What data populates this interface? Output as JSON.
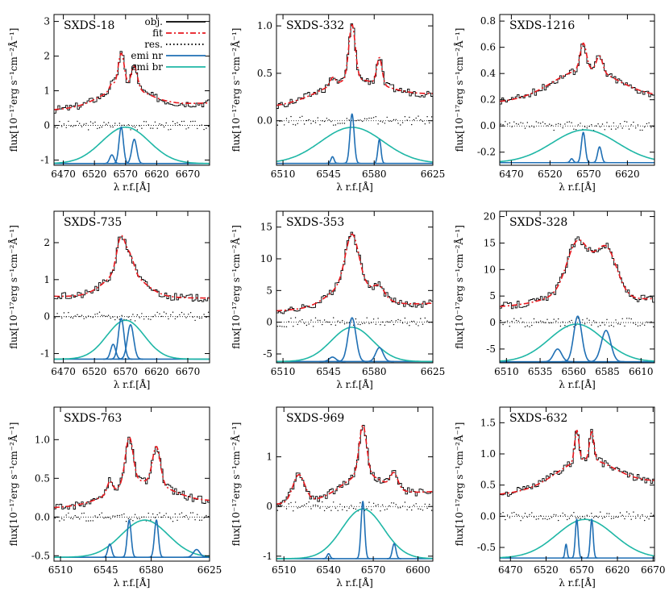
{
  "figure": {
    "ylabel": "flux[10⁻¹⁷erg s⁻¹cm⁻²Å⁻¹]",
    "xlabel": "λ r.f.[Å]"
  },
  "legend": {
    "items": [
      {
        "label": "obj.",
        "style": "solid",
        "color": "#000000"
      },
      {
        "label": "fit",
        "style": "dashdot",
        "color": "#e8181e"
      },
      {
        "label": "res.",
        "style": "dotted",
        "color": "#000000"
      },
      {
        "label": "emi nr",
        "style": "solid",
        "color": "#1f6fb4"
      },
      {
        "label": "emi br",
        "style": "solid",
        "color": "#1fb7a6"
      }
    ]
  },
  "colors": {
    "obj": "#000000",
    "fit": "#e8181e",
    "res": "#000000",
    "nr": "#1f6fb4",
    "br": "#1fb7a6"
  },
  "chart_data": [
    {
      "type": "line",
      "title": "SXDS-18",
      "xlim": [
        6455,
        6705
      ],
      "ylim": [
        -1.15,
        3.2
      ],
      "xticks": [
        6470,
        6520,
        6570,
        6620,
        6670
      ],
      "yticks": [
        -1,
        0,
        1,
        2,
        3
      ],
      "baseline": -1.1,
      "res_level": 0.0,
      "continuum": [
        0.45,
        0.65
      ],
      "broad": {
        "center": 6570,
        "sigma": 38,
        "peak": -0.05
      },
      "narrow": [
        {
          "center": 6548,
          "sigma": 3.5,
          "peak": -0.85
        },
        {
          "center": 6563,
          "sigma": 3.5,
          "peak": -0.05
        },
        {
          "center": 6584,
          "sigma": 4,
          "peak": -0.4
        }
      ],
      "peaks": [
        {
          "center": 6563,
          "sigma": 5,
          "amp": 1.0
        },
        {
          "center": 6584,
          "sigma": 5,
          "amp": 0.65
        },
        {
          "center": 6548,
          "sigma": 4,
          "amp": 0.2
        }
      ],
      "broad_amp": 0.55,
      "broad_sigma": 38,
      "broad_center": 6568
    },
    {
      "type": "line",
      "title": "SXDS-332",
      "xlim": [
        6505,
        6625
      ],
      "ylim": [
        -0.47,
        1.12
      ],
      "xticks": [
        6510,
        6545,
        6580,
        6625
      ],
      "yticks": [
        0.0,
        0.5,
        1.0
      ],
      "baseline": -0.45,
      "res_level": 0.0,
      "continuum": [
        0.15,
        0.28
      ],
      "broad": {
        "center": 6563,
        "sigma": 24,
        "peak": -0.07
      },
      "narrow": [
        {
          "center": 6548,
          "sigma": 1.2,
          "peak": -0.38
        },
        {
          "center": 6563,
          "sigma": 1.6,
          "peak": 0.07
        },
        {
          "center": 6584,
          "sigma": 1.2,
          "peak": -0.2
        }
      ],
      "peaks": [
        {
          "center": 6563,
          "sigma": 2.5,
          "amp": 0.58
        },
        {
          "center": 6584,
          "sigma": 2,
          "amp": 0.28
        },
        {
          "center": 6548,
          "sigma": 2,
          "amp": 0.08
        }
      ],
      "broad_amp": 0.22,
      "broad_sigma": 24,
      "broad_center": 6563
    },
    {
      "type": "line",
      "title": "SXDS-1216",
      "xlim": [
        6455,
        6655
      ],
      "ylim": [
        -0.3,
        0.85
      ],
      "xticks": [
        6470,
        6520,
        6570,
        6620
      ],
      "yticks": [
        -0.2,
        0.0,
        0.2,
        0.4,
        0.6,
        0.8
      ],
      "baseline": -0.28,
      "res_level": 0.0,
      "continuum": [
        0.18,
        0.22
      ],
      "broad": {
        "center": 6565,
        "sigma": 42,
        "peak": -0.03
      },
      "narrow": [
        {
          "center": 6548,
          "sigma": 2,
          "peak": -0.25
        },
        {
          "center": 6563,
          "sigma": 2.5,
          "peak": -0.05
        },
        {
          "center": 6584,
          "sigma": 2.5,
          "peak": -0.16
        }
      ],
      "peaks": [
        {
          "center": 6563,
          "sigma": 4,
          "amp": 0.2
        },
        {
          "center": 6584,
          "sigma": 4,
          "amp": 0.12
        }
      ],
      "broad_amp": 0.23,
      "broad_sigma": 42,
      "broad_center": 6565
    },
    {
      "type": "line",
      "title": "SXDS-735",
      "xlim": [
        6455,
        6705
      ],
      "ylim": [
        -1.25,
        2.85
      ],
      "xticks": [
        6470,
        6520,
        6570,
        6620,
        6670
      ],
      "yticks": [
        -1,
        0,
        1,
        2
      ],
      "baseline": -1.15,
      "res_level": 0.0,
      "continuum": [
        0.55,
        0.5
      ],
      "broad": {
        "center": 6570,
        "sigma": 30,
        "peak": -0.1
      },
      "narrow": [
        {
          "center": 6550,
          "sigma": 4,
          "peak": -0.75
        },
        {
          "center": 6563,
          "sigma": 4.5,
          "peak": -0.05
        },
        {
          "center": 6578,
          "sigma": 5,
          "peak": -0.22
        }
      ],
      "peaks": [
        {
          "center": 6563,
          "sigma": 7,
          "amp": 0.95
        },
        {
          "center": 6578,
          "sigma": 6,
          "amp": 0.4
        }
      ],
      "broad_amp": 0.7,
      "broad_sigma": 30,
      "broad_center": 6568
    },
    {
      "type": "line",
      "title": "SXDS-353",
      "xlim": [
        6505,
        6625
      ],
      "ylim": [
        -6.4,
        17.5
      ],
      "xticks": [
        6510,
        6545,
        6580,
        6625
      ],
      "yticks": [
        -5,
        0,
        5,
        10,
        15
      ],
      "baseline": -6.2,
      "res_level": 0.0,
      "continuum": [
        1.8,
        3.0
      ],
      "broad": {
        "center": 6563,
        "sigma": 16,
        "peak": -0.8
      },
      "narrow": [
        {
          "center": 6548,
          "sigma": 2.5,
          "peak": -5.5
        },
        {
          "center": 6563,
          "sigma": 3,
          "peak": 0.7
        },
        {
          "center": 6584,
          "sigma": 2.8,
          "peak": -4.0
        }
      ],
      "peaks": [
        {
          "center": 6563,
          "sigma": 5,
          "amp": 7.5
        },
        {
          "center": 6584,
          "sigma": 4,
          "amp": 1.5
        }
      ],
      "broad_amp": 4.0,
      "broad_sigma": 16,
      "broad_center": 6563
    },
    {
      "type": "line",
      "title": "SXDS-328",
      "xlim": [
        6505,
        6620
      ],
      "ylim": [
        -7.6,
        21
      ],
      "xticks": [
        6510,
        6535,
        6560,
        6585,
        6610
      ],
      "yticks": [
        -5,
        0,
        5,
        10,
        15,
        20
      ],
      "baseline": -7.4,
      "res_level": 0.0,
      "continuum": [
        3.0,
        4.5
      ],
      "broad": {
        "center": 6562,
        "sigma": 20,
        "peak": -0.3
      },
      "narrow": [
        {
          "center": 6548,
          "sigma": 3,
          "peak": -5.0
        },
        {
          "center": 6563,
          "sigma": 3,
          "peak": 1.2
        },
        {
          "center": 6584,
          "sigma": 3.5,
          "peak": -1.5
        }
      ],
      "peaks": [
        {
          "center": 6563,
          "sigma": 8,
          "amp": 9.5
        },
        {
          "center": 6584,
          "sigma": 8,
          "amp": 9.0
        }
      ],
      "broad_amp": 2.0,
      "broad_sigma": 20,
      "broad_center": 6562
    },
    {
      "type": "line",
      "title": "SXDS-763",
      "xlim": [
        6505,
        6625
      ],
      "ylim": [
        -0.57,
        1.42
      ],
      "xticks": [
        6510,
        6545,
        6580,
        6625
      ],
      "yticks": [
        -0.5,
        0.0,
        0.5,
        1.0
      ],
      "baseline": -0.52,
      "res_level": 0.0,
      "continuum": [
        0.12,
        0.2
      ],
      "broad": {
        "center": 6575,
        "sigma": 18,
        "peak": -0.04
      },
      "narrow": [
        {
          "center": 6548,
          "sigma": 1.5,
          "peak": -0.35
        },
        {
          "center": 6563,
          "sigma": 1.5,
          "peak": -0.04
        },
        {
          "center": 6584,
          "sigma": 1.5,
          "peak": -0.04
        },
        {
          "center": 6615,
          "sigma": 2.5,
          "peak": -0.42
        }
      ],
      "peaks": [
        {
          "center": 6563,
          "sigma": 3,
          "amp": 0.6
        },
        {
          "center": 6584,
          "sigma": 3,
          "amp": 0.48
        },
        {
          "center": 6548,
          "sigma": 2,
          "amp": 0.15
        }
      ],
      "broad_amp": 0.3,
      "broad_sigma": 22,
      "broad_center": 6572
    },
    {
      "type": "line",
      "title": "SXDS-969",
      "xlim": [
        6505,
        6610
      ],
      "ylim": [
        -1.1,
        2.0
      ],
      "xticks": [
        6510,
        6540,
        6570,
        6600
      ],
      "yticks": [
        -1,
        0,
        1
      ],
      "baseline": -1.05,
      "res_level": 0.0,
      "continuum": [
        0.05,
        0.3
      ],
      "broad": {
        "center": 6563,
        "sigma": 14,
        "peak": -0.05
      },
      "narrow": [
        {
          "center": 6540,
          "sigma": 1,
          "peak": -0.95
        },
        {
          "center": 6563,
          "sigma": 1.2,
          "peak": 0.1
        },
        {
          "center": 6584,
          "sigma": 1.2,
          "peak": -0.75
        }
      ],
      "peaks": [
        {
          "center": 6563,
          "sigma": 2.5,
          "amp": 1.0
        },
        {
          "center": 6584,
          "sigma": 2.5,
          "amp": 0.3
        },
        {
          "center": 6520,
          "sigma": 4,
          "amp": 0.55
        }
      ],
      "broad_amp": 0.45,
      "broad_sigma": 14,
      "broad_center": 6563
    },
    {
      "type": "line",
      "title": "SXDS-632",
      "xlim": [
        6455,
        6672
      ],
      "ylim": [
        -0.72,
        1.75
      ],
      "xticks": [
        6470,
        6520,
        6570,
        6620,
        6670
      ],
      "yticks": [
        -0.5,
        0.0,
        0.5,
        1.0,
        1.5
      ],
      "baseline": -0.67,
      "res_level": 0.0,
      "continuum": [
        0.35,
        0.55
      ],
      "broad": {
        "center": 6575,
        "sigma": 40,
        "peak": -0.05
      },
      "narrow": [
        {
          "center": 6548,
          "sigma": 1.5,
          "peak": -0.45
        },
        {
          "center": 6563,
          "sigma": 2,
          "peak": -0.05
        },
        {
          "center": 6584,
          "sigma": 2,
          "peak": -0.05
        }
      ],
      "peaks": [
        {
          "center": 6563,
          "sigma": 3,
          "amp": 0.5
        },
        {
          "center": 6584,
          "sigma": 3,
          "amp": 0.45
        }
      ],
      "broad_amp": 0.45,
      "broad_sigma": 40,
      "broad_center": 6575
    }
  ]
}
